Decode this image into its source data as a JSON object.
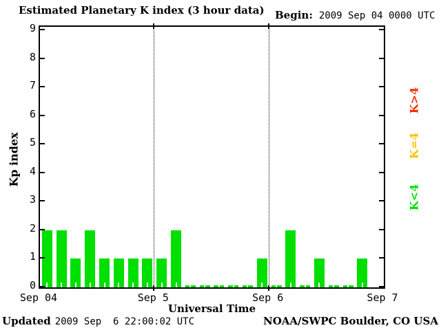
{
  "title": "Estimated Planetary K index (3 hour data)",
  "begin": {
    "label": "Begin:",
    "value": "2009 Sep 04 0000 UTC"
  },
  "footer": {
    "updated_label": "Updated",
    "updated_value": "2009 Sep  6 22:00:02 UTC",
    "credit": "NOAA/SWPC Boulder, CO USA"
  },
  "chart_data": {
    "type": "bar",
    "title": "Estimated Planetary K index (3 hour data)",
    "begin": "2009 Sep 04 0000 UTC",
    "updated": "2009 Sep  6 22:00:02 UTC",
    "xlabel": "Universal Time",
    "ylabel": "Kp index",
    "ylim": [
      0,
      9
    ],
    "y_ticks": [
      0,
      1,
      2,
      3,
      4,
      5,
      6,
      7,
      8,
      9
    ],
    "x_ticks": [
      "Sep 04",
      "Sep 5",
      "Sep 6",
      "Sep 7"
    ],
    "interval_hours": 3,
    "slots_per_day": 8,
    "days": [
      "2009 Sep 04",
      "2009 Sep 05",
      "2009 Sep 06"
    ],
    "values": [
      2,
      2,
      1,
      2,
      1,
      1,
      1,
      1,
      1,
      2,
      0,
      0,
      0,
      0,
      0,
      1,
      0,
      2,
      0,
      1,
      0,
      0,
      1,
      null
    ],
    "day_boundaries_after_slot": [
      8,
      16
    ],
    "bar_color": "#00e000",
    "grid": "dotted vertical lines at day boundaries",
    "legend_position": "right, rotated 90deg",
    "legend": [
      {
        "label": "K<4",
        "color": "#00dd00"
      },
      {
        "label": "K=4",
        "color": "#f5c400"
      },
      {
        "label": "K>4",
        "color": "#f33000"
      }
    ]
  }
}
